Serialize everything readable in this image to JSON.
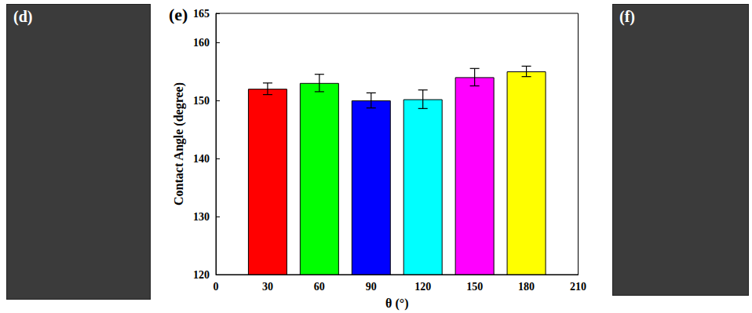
{
  "chart_data": {
    "type": "bar",
    "title": "(e)",
    "x": [
      30,
      60,
      90,
      120,
      150,
      180
    ],
    "values": [
      152,
      153,
      150,
      150.2,
      154,
      155
    ],
    "errors": [
      1,
      1.5,
      1.3,
      1.6,
      1.5,
      0.9
    ],
    "colors": [
      "#ff0000",
      "#00ff00",
      "#0000ff",
      "#00ffff",
      "#ff00ff",
      "#ffff00"
    ],
    "x_label": "θ (°)",
    "y_label": "Contact Angle (degree)",
    "xlim": [
      0,
      210
    ],
    "xticks": [
      0,
      30,
      60,
      90,
      120,
      150,
      180,
      210
    ],
    "ylim": [
      120,
      165
    ],
    "yticks": [
      120,
      130,
      140,
      150,
      160
    ],
    "grid": false
  },
  "panels": [
    {
      "label": "(d)"
    },
    {
      "label": "(f)"
    }
  ]
}
